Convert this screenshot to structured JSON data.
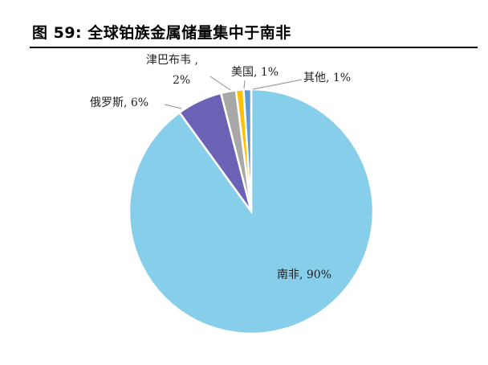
{
  "figure": {
    "title": "图  59:  全球铂族金属储量集中于南非"
  },
  "chart_data": {
    "type": "pie",
    "slices": [
      {
        "label": "南非",
        "value": 90,
        "pct_text": "90%",
        "color": "#87CEEB"
      },
      {
        "label": "俄罗斯",
        "value": 6,
        "pct_text": "6%",
        "color": "#6A63B5"
      },
      {
        "label": "津巴布韦",
        "value": 2,
        "pct_text": "2%",
        "color": "#A8A8A8"
      },
      {
        "label": "美国",
        "value": 1,
        "pct_text": "1%",
        "color": "#FFC000"
      },
      {
        "label": "其他",
        "value": 1,
        "pct_text": "1%",
        "color": "#5B9BD5"
      }
    ],
    "legend": "none",
    "label_separator": ", "
  }
}
